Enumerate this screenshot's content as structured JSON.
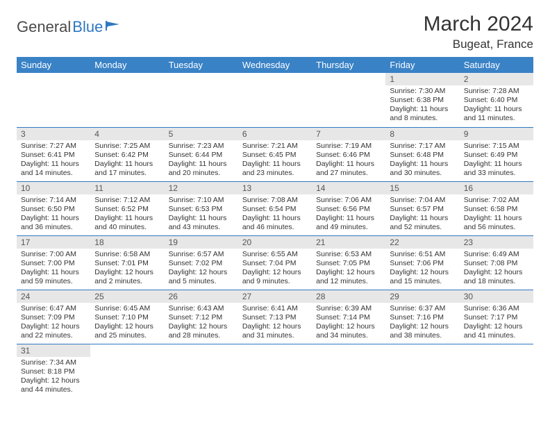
{
  "logo": {
    "text_dark": "General",
    "text_blue": "Blue"
  },
  "title": "March 2024",
  "location": "Bugeat, France",
  "header_color": "#3982c6",
  "border_color": "#2f78c1",
  "daynum_bg": "#e7e7e7",
  "weekdays": [
    "Sunday",
    "Monday",
    "Tuesday",
    "Wednesday",
    "Thursday",
    "Friday",
    "Saturday"
  ],
  "weeks": [
    [
      {
        "n": "",
        "lines": []
      },
      {
        "n": "",
        "lines": []
      },
      {
        "n": "",
        "lines": []
      },
      {
        "n": "",
        "lines": []
      },
      {
        "n": "",
        "lines": []
      },
      {
        "n": "1",
        "lines": [
          "Sunrise: 7:30 AM",
          "Sunset: 6:38 PM",
          "Daylight: 11 hours",
          "and 8 minutes."
        ]
      },
      {
        "n": "2",
        "lines": [
          "Sunrise: 7:28 AM",
          "Sunset: 6:40 PM",
          "Daylight: 11 hours",
          "and 11 minutes."
        ]
      }
    ],
    [
      {
        "n": "3",
        "lines": [
          "Sunrise: 7:27 AM",
          "Sunset: 6:41 PM",
          "Daylight: 11 hours",
          "and 14 minutes."
        ]
      },
      {
        "n": "4",
        "lines": [
          "Sunrise: 7:25 AM",
          "Sunset: 6:42 PM",
          "Daylight: 11 hours",
          "and 17 minutes."
        ]
      },
      {
        "n": "5",
        "lines": [
          "Sunrise: 7:23 AM",
          "Sunset: 6:44 PM",
          "Daylight: 11 hours",
          "and 20 minutes."
        ]
      },
      {
        "n": "6",
        "lines": [
          "Sunrise: 7:21 AM",
          "Sunset: 6:45 PM",
          "Daylight: 11 hours",
          "and 23 minutes."
        ]
      },
      {
        "n": "7",
        "lines": [
          "Sunrise: 7:19 AM",
          "Sunset: 6:46 PM",
          "Daylight: 11 hours",
          "and 27 minutes."
        ]
      },
      {
        "n": "8",
        "lines": [
          "Sunrise: 7:17 AM",
          "Sunset: 6:48 PM",
          "Daylight: 11 hours",
          "and 30 minutes."
        ]
      },
      {
        "n": "9",
        "lines": [
          "Sunrise: 7:15 AM",
          "Sunset: 6:49 PM",
          "Daylight: 11 hours",
          "and 33 minutes."
        ]
      }
    ],
    [
      {
        "n": "10",
        "lines": [
          "Sunrise: 7:14 AM",
          "Sunset: 6:50 PM",
          "Daylight: 11 hours",
          "and 36 minutes."
        ]
      },
      {
        "n": "11",
        "lines": [
          "Sunrise: 7:12 AM",
          "Sunset: 6:52 PM",
          "Daylight: 11 hours",
          "and 40 minutes."
        ]
      },
      {
        "n": "12",
        "lines": [
          "Sunrise: 7:10 AM",
          "Sunset: 6:53 PM",
          "Daylight: 11 hours",
          "and 43 minutes."
        ]
      },
      {
        "n": "13",
        "lines": [
          "Sunrise: 7:08 AM",
          "Sunset: 6:54 PM",
          "Daylight: 11 hours",
          "and 46 minutes."
        ]
      },
      {
        "n": "14",
        "lines": [
          "Sunrise: 7:06 AM",
          "Sunset: 6:56 PM",
          "Daylight: 11 hours",
          "and 49 minutes."
        ]
      },
      {
        "n": "15",
        "lines": [
          "Sunrise: 7:04 AM",
          "Sunset: 6:57 PM",
          "Daylight: 11 hours",
          "and 52 minutes."
        ]
      },
      {
        "n": "16",
        "lines": [
          "Sunrise: 7:02 AM",
          "Sunset: 6:58 PM",
          "Daylight: 11 hours",
          "and 56 minutes."
        ]
      }
    ],
    [
      {
        "n": "17",
        "lines": [
          "Sunrise: 7:00 AM",
          "Sunset: 7:00 PM",
          "Daylight: 11 hours",
          "and 59 minutes."
        ]
      },
      {
        "n": "18",
        "lines": [
          "Sunrise: 6:58 AM",
          "Sunset: 7:01 PM",
          "Daylight: 12 hours",
          "and 2 minutes."
        ]
      },
      {
        "n": "19",
        "lines": [
          "Sunrise: 6:57 AM",
          "Sunset: 7:02 PM",
          "Daylight: 12 hours",
          "and 5 minutes."
        ]
      },
      {
        "n": "20",
        "lines": [
          "Sunrise: 6:55 AM",
          "Sunset: 7:04 PM",
          "Daylight: 12 hours",
          "and 9 minutes."
        ]
      },
      {
        "n": "21",
        "lines": [
          "Sunrise: 6:53 AM",
          "Sunset: 7:05 PM",
          "Daylight: 12 hours",
          "and 12 minutes."
        ]
      },
      {
        "n": "22",
        "lines": [
          "Sunrise: 6:51 AM",
          "Sunset: 7:06 PM",
          "Daylight: 12 hours",
          "and 15 minutes."
        ]
      },
      {
        "n": "23",
        "lines": [
          "Sunrise: 6:49 AM",
          "Sunset: 7:08 PM",
          "Daylight: 12 hours",
          "and 18 minutes."
        ]
      }
    ],
    [
      {
        "n": "24",
        "lines": [
          "Sunrise: 6:47 AM",
          "Sunset: 7:09 PM",
          "Daylight: 12 hours",
          "and 22 minutes."
        ]
      },
      {
        "n": "25",
        "lines": [
          "Sunrise: 6:45 AM",
          "Sunset: 7:10 PM",
          "Daylight: 12 hours",
          "and 25 minutes."
        ]
      },
      {
        "n": "26",
        "lines": [
          "Sunrise: 6:43 AM",
          "Sunset: 7:12 PM",
          "Daylight: 12 hours",
          "and 28 minutes."
        ]
      },
      {
        "n": "27",
        "lines": [
          "Sunrise: 6:41 AM",
          "Sunset: 7:13 PM",
          "Daylight: 12 hours",
          "and 31 minutes."
        ]
      },
      {
        "n": "28",
        "lines": [
          "Sunrise: 6:39 AM",
          "Sunset: 7:14 PM",
          "Daylight: 12 hours",
          "and 34 minutes."
        ]
      },
      {
        "n": "29",
        "lines": [
          "Sunrise: 6:37 AM",
          "Sunset: 7:16 PM",
          "Daylight: 12 hours",
          "and 38 minutes."
        ]
      },
      {
        "n": "30",
        "lines": [
          "Sunrise: 6:36 AM",
          "Sunset: 7:17 PM",
          "Daylight: 12 hours",
          "and 41 minutes."
        ]
      }
    ],
    [
      {
        "n": "31",
        "lines": [
          "Sunrise: 7:34 AM",
          "Sunset: 8:18 PM",
          "Daylight: 12 hours",
          "and 44 minutes."
        ]
      },
      {
        "n": "",
        "lines": []
      },
      {
        "n": "",
        "lines": []
      },
      {
        "n": "",
        "lines": []
      },
      {
        "n": "",
        "lines": []
      },
      {
        "n": "",
        "lines": []
      },
      {
        "n": "",
        "lines": []
      }
    ]
  ]
}
